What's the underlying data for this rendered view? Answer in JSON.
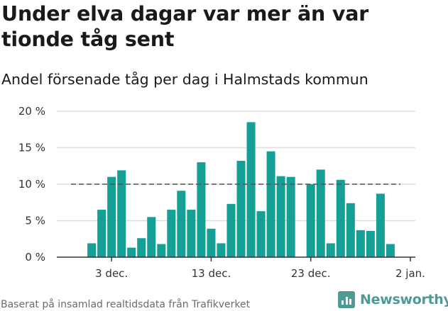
{
  "header": {
    "title": "Under elva dagar var mer än var tionde tåg sent",
    "subtitle": "Andel försenade tåg per dag i Halmstads kommun"
  },
  "footer": {
    "source": "Baserat på insamlad realtidsdata från Trafikverket",
    "logo_text": "Newsworthy",
    "logo_icon": "bar-chart-logo-icon"
  },
  "colors": {
    "bar": "#14a096",
    "grid": "#dddddd",
    "reference_line": "#555555",
    "axis": "#333333",
    "logo": "#4f9a94"
  },
  "chart_data": {
    "type": "bar",
    "x_ticks": [
      {
        "day": 3,
        "label": "3 dec."
      },
      {
        "day": 13,
        "label": "13 dec."
      },
      {
        "day": 23,
        "label": "23 dec."
      },
      {
        "day": 33,
        "label": "2 jan."
      }
    ],
    "y_ticks": [
      {
        "value": 0,
        "label": "0 %"
      },
      {
        "value": 5,
        "label": "5 %"
      },
      {
        "value": 10,
        "label": "10 %"
      },
      {
        "value": 15,
        "label": "15 %"
      },
      {
        "value": 20,
        "label": "20 %"
      }
    ],
    "xlim": [
      "2023-11-28",
      "2024-01-03"
    ],
    "ylim": [
      0,
      20
    ],
    "reference_line": 10,
    "points": [
      {
        "date": "2023-12-01",
        "value": 1.9
      },
      {
        "date": "2023-12-02",
        "value": 6.5
      },
      {
        "date": "2023-12-03",
        "value": 11.0
      },
      {
        "date": "2023-12-04",
        "value": 11.9
      },
      {
        "date": "2023-12-05",
        "value": 1.3
      },
      {
        "date": "2023-12-06",
        "value": 2.6
      },
      {
        "date": "2023-12-07",
        "value": 5.5
      },
      {
        "date": "2023-12-08",
        "value": 1.8
      },
      {
        "date": "2023-12-09",
        "value": 6.5
      },
      {
        "date": "2023-12-10",
        "value": 9.1
      },
      {
        "date": "2023-12-11",
        "value": 6.5
      },
      {
        "date": "2023-12-12",
        "value": 13.0
      },
      {
        "date": "2023-12-13",
        "value": 3.9
      },
      {
        "date": "2023-12-14",
        "value": 1.9
      },
      {
        "date": "2023-12-15",
        "value": 7.3
      },
      {
        "date": "2023-12-16",
        "value": 13.2
      },
      {
        "date": "2023-12-17",
        "value": 18.5
      },
      {
        "date": "2023-12-18",
        "value": 6.3
      },
      {
        "date": "2023-12-19",
        "value": 14.5
      },
      {
        "date": "2023-12-20",
        "value": 11.1
      },
      {
        "date": "2023-12-21",
        "value": 11.0
      },
      {
        "date": "2023-12-23",
        "value": 10.0
      },
      {
        "date": "2023-12-24",
        "value": 12.0
      },
      {
        "date": "2023-12-25",
        "value": 1.9
      },
      {
        "date": "2023-12-26",
        "value": 10.6
      },
      {
        "date": "2023-12-27",
        "value": 7.4
      },
      {
        "date": "2023-12-28",
        "value": 3.7
      },
      {
        "date": "2023-12-29",
        "value": 3.6
      },
      {
        "date": "2023-12-30",
        "value": 8.7
      },
      {
        "date": "2023-12-31",
        "value": 1.8
      }
    ]
  }
}
